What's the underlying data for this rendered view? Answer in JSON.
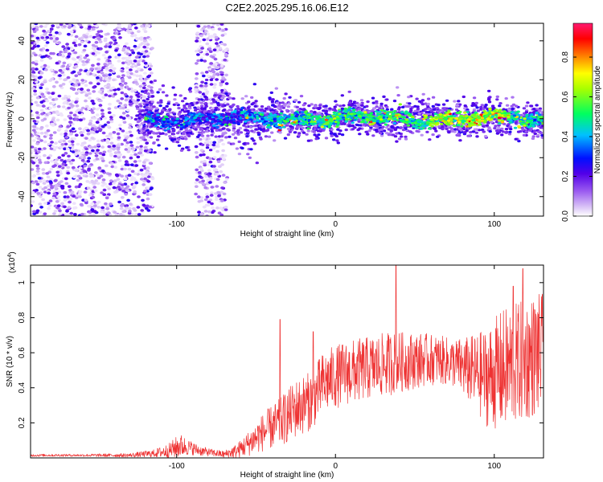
{
  "title": "C2E2.2025.295.16.06.E12",
  "chart_data": [
    {
      "type": "heatmap",
      "subtype": "spectrogram",
      "xlabel": "Height of straight line (km)",
      "ylabel": "Frequency (Hz)",
      "xlim": [
        -192,
        131
      ],
      "ylim": [
        -50,
        49
      ],
      "xticks": [
        -100,
        0,
        100
      ],
      "yticks": [
        -40,
        -20,
        0,
        20,
        40
      ],
      "colorbar": {
        "label": "Normalized spectral amplitude",
        "range": [
          0.0,
          0.97
        ],
        "ticks": [
          0.0,
          0.2,
          0.4,
          0.6,
          0.8
        ],
        "colormap": [
          "#ffffff",
          "#c9a6f2",
          "#8a4ff0",
          "#5b00e8",
          "#0000ff",
          "#00c8ff",
          "#00ff50",
          "#ffff00",
          "#ff8000",
          "#ff0000",
          "#ff1060"
        ]
      },
      "features": {
        "background_noise_bands": [
          [
            -192,
            -115
          ],
          [
            -88,
            -68
          ]
        ],
        "signal_track_x_range": [
          -125,
          131
        ],
        "signal_center_freq_hz": 0,
        "peak_amplitude_region_x": [
          60,
          110
        ],
        "peak_amplitude": 0.95
      }
    },
    {
      "type": "line",
      "xlabel": "Height of straight line (km)",
      "ylabel": "SNR (10 * v/v)",
      "yscale_label": "(x10",
      "yscale_exp": "4",
      "xlim": [
        -192,
        131
      ],
      "ylim": [
        0.0,
        1.1
      ],
      "xticks": [
        -100,
        0,
        100
      ],
      "yticks": [
        0.2,
        0.4,
        0.6,
        0.8,
        1.0
      ],
      "series": [
        {
          "name": "SNR",
          "color": "#ee3333",
          "x": [
            -192,
            -160,
            -130,
            -115,
            -105,
            -98,
            -92,
            -85,
            -78,
            -70,
            -62,
            -55,
            -45,
            -35,
            -25,
            -15,
            -8,
            -3,
            5,
            15,
            25,
            35,
            45,
            55,
            65,
            75,
            85,
            95,
            105,
            115,
            125,
            131
          ],
          "mean": [
            0.015,
            0.015,
            0.015,
            0.025,
            0.04,
            0.07,
            0.06,
            0.04,
            0.03,
            0.02,
            0.04,
            0.08,
            0.15,
            0.2,
            0.28,
            0.33,
            0.42,
            0.45,
            0.48,
            0.5,
            0.52,
            0.54,
            0.55,
            0.56,
            0.56,
            0.54,
            0.5,
            0.46,
            0.5,
            0.54,
            0.58,
            0.6
          ],
          "noise": [
            0.005,
            0.005,
            0.008,
            0.015,
            0.03,
            0.05,
            0.03,
            0.02,
            0.015,
            0.015,
            0.03,
            0.05,
            0.08,
            0.1,
            0.12,
            0.12,
            0.13,
            0.13,
            0.13,
            0.13,
            0.13,
            0.13,
            0.12,
            0.11,
            0.1,
            0.1,
            0.14,
            0.2,
            0.25,
            0.25,
            0.25,
            0.25
          ],
          "peaks": [
            [
              -35,
              0.79
            ],
            [
              -14,
              0.72
            ],
            [
              38,
              1.1
            ],
            [
              118,
              1.08
            ],
            [
              112,
              0.98
            ]
          ]
        }
      ]
    }
  ]
}
